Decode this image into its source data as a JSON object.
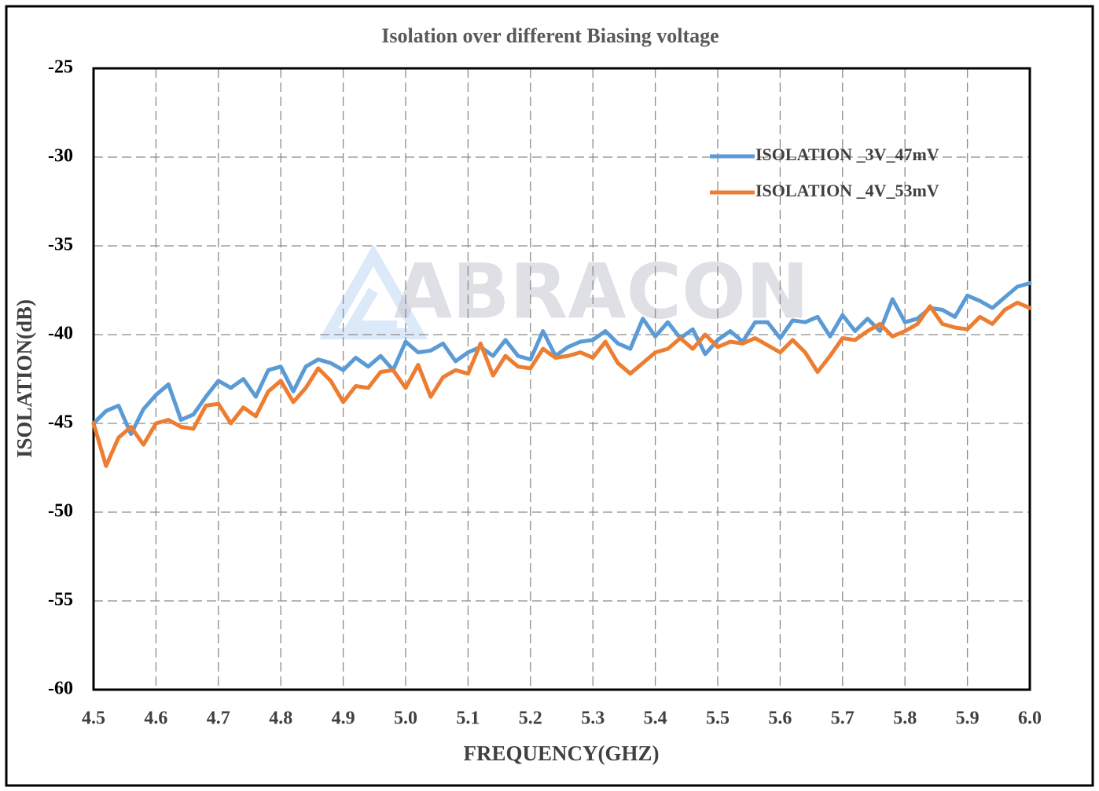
{
  "chart_data": {
    "type": "line",
    "title": "Isolation over different Biasing voltage",
    "watermark": "ABRACON",
    "xlabel": "FREQUENCY(GHZ)",
    "ylabel": "ISOLATION(dB)",
    "x": [
      4.5,
      4.52,
      4.54,
      4.56,
      4.58,
      4.6,
      4.62,
      4.64,
      4.66,
      4.68,
      4.7,
      4.72,
      4.74,
      4.76,
      4.78,
      4.8,
      4.82,
      4.84,
      4.86,
      4.88,
      4.9,
      4.92,
      4.94,
      4.96,
      4.98,
      5.0,
      5.02,
      5.04,
      5.06,
      5.08,
      5.1,
      5.12,
      5.14,
      5.16,
      5.18,
      5.2,
      5.22,
      5.24,
      5.26,
      5.28,
      5.3,
      5.32,
      5.34,
      5.36,
      5.38,
      5.4,
      5.42,
      5.44,
      5.46,
      5.48,
      5.5,
      5.52,
      5.54,
      5.56,
      5.58,
      5.6,
      5.62,
      5.64,
      5.66,
      5.68,
      5.7,
      5.72,
      5.74,
      5.76,
      5.78,
      5.8,
      5.82,
      5.84,
      5.86,
      5.88,
      5.9,
      5.92,
      5.94,
      5.96,
      5.98,
      6.0
    ],
    "series": [
      {
        "name": "ISOLATION _3V_47mV",
        "color": "#5b9bd5",
        "values": [
          -45.0,
          -44.3,
          -44.0,
          -45.6,
          -44.2,
          -43.4,
          -42.8,
          -44.8,
          -44.5,
          -43.5,
          -42.6,
          -43.0,
          -42.5,
          -43.5,
          -42.0,
          -41.8,
          -43.2,
          -41.8,
          -41.4,
          -41.6,
          -42.0,
          -41.3,
          -41.8,
          -41.2,
          -42.0,
          -40.4,
          -41.0,
          -40.9,
          -40.5,
          -41.5,
          -41.0,
          -40.7,
          -41.2,
          -40.3,
          -41.2,
          -41.4,
          -39.8,
          -41.2,
          -40.7,
          -40.4,
          -40.3,
          -39.8,
          -40.5,
          -40.8,
          -39.1,
          -40.1,
          -39.3,
          -40.2,
          -39.7,
          -41.1,
          -40.3,
          -39.8,
          -40.4,
          -39.3,
          -39.3,
          -40.2,
          -39.2,
          -39.3,
          -39.0,
          -40.1,
          -38.9,
          -39.8,
          -39.1,
          -39.8,
          -38.0,
          -39.3,
          -39.1,
          -38.5,
          -38.6,
          -39.0,
          -37.8,
          -38.1,
          -38.5,
          -37.9,
          -37.3,
          -37.1
        ]
      },
      {
        "name": "ISOLATION _4V_53mV",
        "color": "#ed7d31",
        "values": [
          -45.0,
          -47.4,
          -45.8,
          -45.2,
          -46.2,
          -45.0,
          -44.8,
          -45.2,
          -45.3,
          -44.0,
          -43.9,
          -45.0,
          -44.1,
          -44.6,
          -43.2,
          -42.6,
          -43.8,
          -43.0,
          -41.9,
          -42.6,
          -43.8,
          -42.9,
          -43.0,
          -42.1,
          -42.0,
          -43.0,
          -41.7,
          -43.5,
          -42.4,
          -42.0,
          -42.2,
          -40.5,
          -42.3,
          -41.2,
          -41.8,
          -41.9,
          -40.8,
          -41.3,
          -41.2,
          -41.0,
          -41.3,
          -40.4,
          -41.6,
          -42.2,
          -41.6,
          -41.0,
          -40.8,
          -40.2,
          -40.8,
          -40.0,
          -40.7,
          -40.4,
          -40.5,
          -40.2,
          -40.6,
          -41.0,
          -40.3,
          -41.0,
          -42.1,
          -41.2,
          -40.2,
          -40.3,
          -39.8,
          -39.4,
          -40.1,
          -39.8,
          -39.4,
          -38.4,
          -39.4,
          -39.6,
          -39.7,
          -39.0,
          -39.4,
          -38.6,
          -38.2,
          -38.5
        ]
      }
    ],
    "xlim": [
      4.5,
      6.0
    ],
    "xticks": [
      4.5,
      4.6,
      4.7,
      4.8,
      4.9,
      {
        "value": 5,
        "label": "5.0"
      },
      5.1,
      5.2,
      5.3,
      5.4,
      5.5,
      5.6,
      5.7,
      5.8,
      5.9,
      {
        "value": 6,
        "label": "6.0"
      }
    ],
    "ylim": [
      -60,
      -25
    ],
    "yticks": [
      -25,
      -30,
      -35,
      -40,
      -45,
      -50,
      -55,
      -60
    ],
    "grid": true,
    "legend": "upper right"
  }
}
